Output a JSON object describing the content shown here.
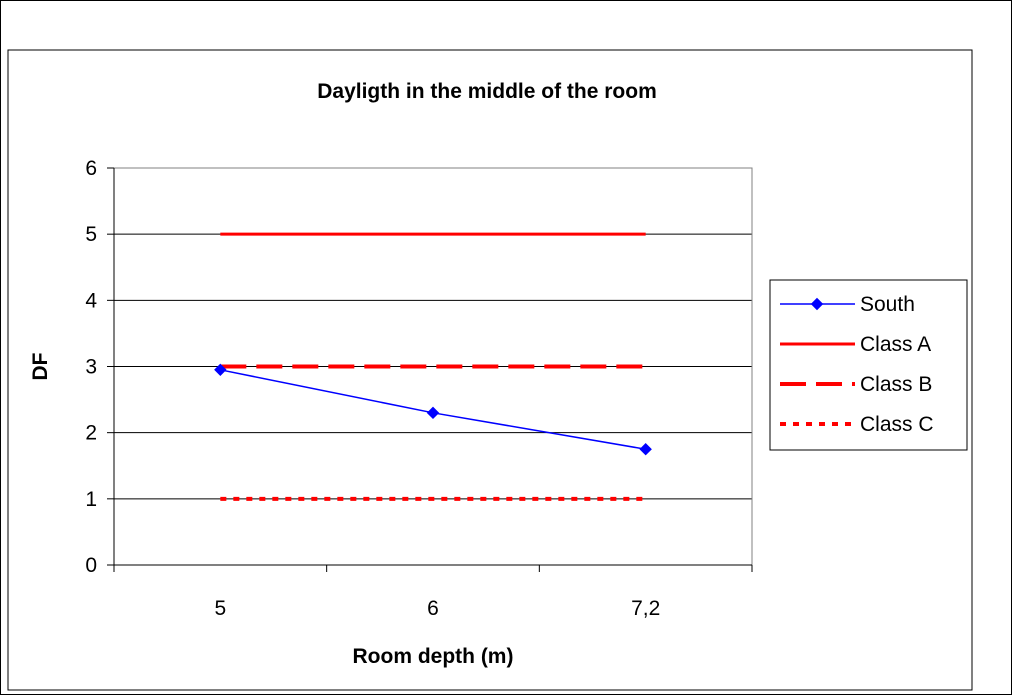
{
  "chart_data": {
    "type": "line",
    "title": "Dayligth in the middle of the room",
    "xlabel": "Room depth (m)",
    "ylabel": "DF",
    "categories": [
      "5",
      "6",
      "7,2"
    ],
    "ylim": [
      0,
      6
    ],
    "yticks": [
      0,
      1,
      2,
      3,
      4,
      5,
      6
    ],
    "grid": true,
    "legend_position": "right",
    "series": [
      {
        "name": "South",
        "values": [
          2.95,
          2.3,
          1.75
        ],
        "color": "#0000FF",
        "style": "solid",
        "marker": "diamond"
      },
      {
        "name": "Class A",
        "values": [
          5,
          5,
          5
        ],
        "color": "#FF0000",
        "style": "solid",
        "marker": "none"
      },
      {
        "name": "Class B",
        "values": [
          3,
          3,
          3
        ],
        "color": "#FF0000",
        "style": "dashed",
        "marker": "none"
      },
      {
        "name": "Class C",
        "values": [
          1,
          1,
          1
        ],
        "color": "#FF0000",
        "style": "dotted",
        "marker": "none"
      }
    ]
  }
}
